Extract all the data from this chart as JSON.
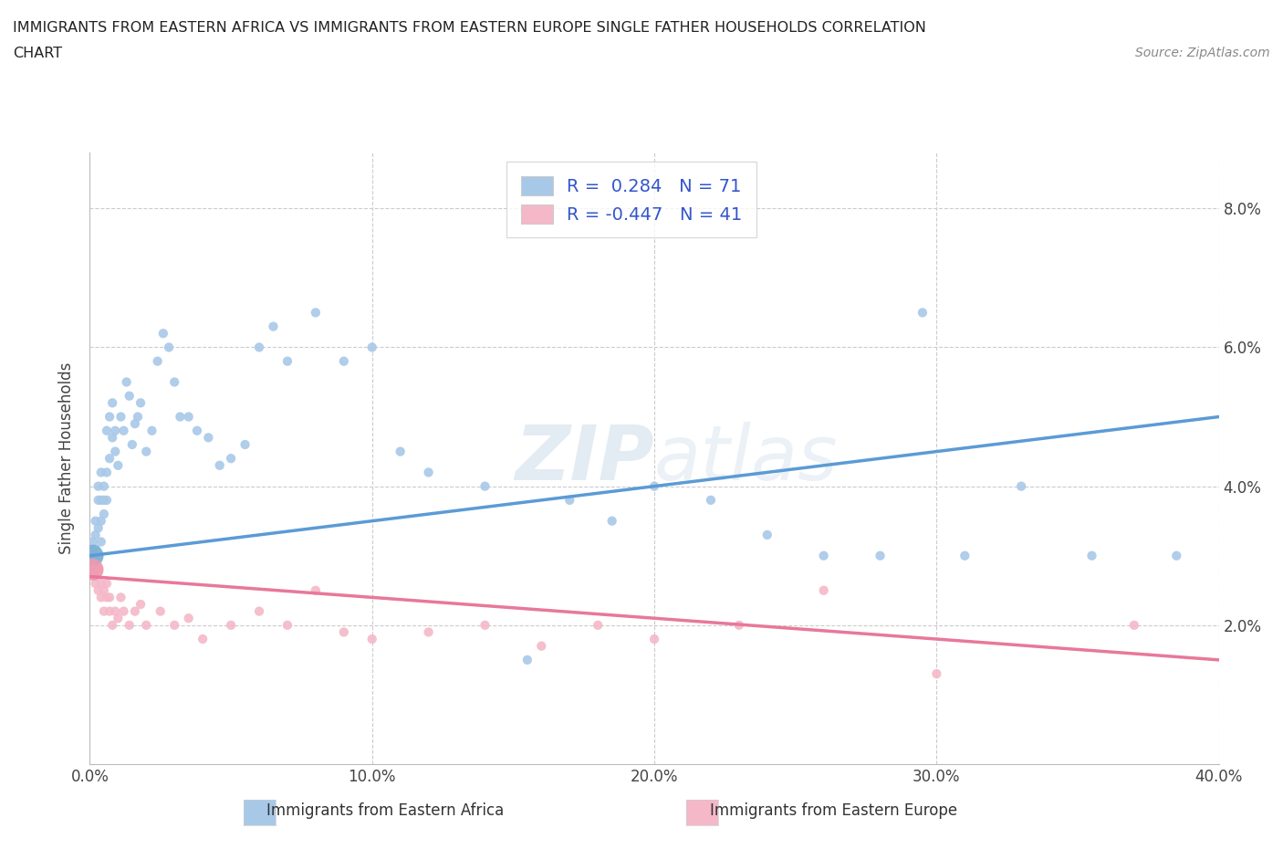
{
  "title_line1": "IMMIGRANTS FROM EASTERN AFRICA VS IMMIGRANTS FROM EASTERN EUROPE SINGLE FATHER HOUSEHOLDS CORRELATION",
  "title_line2": "CHART",
  "source": "Source: ZipAtlas.com",
  "ylabel": "Single Father Households",
  "legend1_label": "Immigrants from Eastern Africa",
  "legend2_label": "Immigrants from Eastern Europe",
  "R1": 0.284,
  "N1": 71,
  "R2": -0.447,
  "N2": 41,
  "color1": "#a8c8e8",
  "color1_line": "#5b9bd5",
  "color1_large": "#7bafd4",
  "color2": "#f4b8c8",
  "color2_line": "#e8789a",
  "color2_large": "#f09ab0",
  "background_color": "#ffffff",
  "grid_color": "#cccccc",
  "watermark_color": "#c8d8e8",
  "xlim": [
    0.0,
    0.4
  ],
  "ylim": [
    0.0,
    0.088
  ],
  "xticks": [
    0.0,
    0.1,
    0.2,
    0.3,
    0.4
  ],
  "yticks": [
    0.02,
    0.04,
    0.06,
    0.08
  ],
  "scatter1_x": [
    0.001,
    0.001,
    0.001,
    0.002,
    0.002,
    0.002,
    0.002,
    0.003,
    0.003,
    0.003,
    0.003,
    0.004,
    0.004,
    0.004,
    0.004,
    0.005,
    0.005,
    0.005,
    0.006,
    0.006,
    0.006,
    0.007,
    0.007,
    0.008,
    0.008,
    0.009,
    0.009,
    0.01,
    0.011,
    0.012,
    0.013,
    0.014,
    0.015,
    0.016,
    0.017,
    0.018,
    0.02,
    0.022,
    0.024,
    0.026,
    0.028,
    0.03,
    0.032,
    0.035,
    0.038,
    0.042,
    0.046,
    0.05,
    0.055,
    0.06,
    0.065,
    0.07,
    0.08,
    0.09,
    0.1,
    0.11,
    0.12,
    0.14,
    0.155,
    0.17,
    0.185,
    0.2,
    0.22,
    0.24,
    0.26,
    0.28,
    0.295,
    0.31,
    0.33,
    0.355,
    0.385
  ],
  "scatter1_y": [
    0.03,
    0.032,
    0.028,
    0.031,
    0.033,
    0.035,
    0.029,
    0.034,
    0.038,
    0.04,
    0.03,
    0.038,
    0.042,
    0.032,
    0.035,
    0.04,
    0.038,
    0.036,
    0.042,
    0.048,
    0.038,
    0.044,
    0.05,
    0.047,
    0.052,
    0.045,
    0.048,
    0.043,
    0.05,
    0.048,
    0.055,
    0.053,
    0.046,
    0.049,
    0.05,
    0.052,
    0.045,
    0.048,
    0.058,
    0.062,
    0.06,
    0.055,
    0.05,
    0.05,
    0.048,
    0.047,
    0.043,
    0.044,
    0.046,
    0.06,
    0.063,
    0.058,
    0.065,
    0.058,
    0.06,
    0.045,
    0.042,
    0.04,
    0.015,
    0.038,
    0.035,
    0.04,
    0.038,
    0.033,
    0.03,
    0.03,
    0.065,
    0.03,
    0.04,
    0.03,
    0.03
  ],
  "scatter2_x": [
    0.001,
    0.002,
    0.002,
    0.003,
    0.003,
    0.004,
    0.004,
    0.005,
    0.005,
    0.006,
    0.006,
    0.007,
    0.007,
    0.008,
    0.009,
    0.01,
    0.011,
    0.012,
    0.014,
    0.016,
    0.018,
    0.02,
    0.025,
    0.03,
    0.035,
    0.04,
    0.05,
    0.06,
    0.07,
    0.08,
    0.09,
    0.1,
    0.12,
    0.14,
    0.16,
    0.18,
    0.2,
    0.23,
    0.26,
    0.3,
    0.37
  ],
  "scatter2_y": [
    0.028,
    0.027,
    0.026,
    0.025,
    0.028,
    0.024,
    0.026,
    0.025,
    0.022,
    0.024,
    0.026,
    0.022,
    0.024,
    0.02,
    0.022,
    0.021,
    0.024,
    0.022,
    0.02,
    0.022,
    0.023,
    0.02,
    0.022,
    0.02,
    0.021,
    0.018,
    0.02,
    0.022,
    0.02,
    0.025,
    0.019,
    0.018,
    0.019,
    0.02,
    0.017,
    0.02,
    0.018,
    0.02,
    0.025,
    0.013,
    0.02
  ],
  "large_scatter2_x": [
    0.001
  ],
  "large_scatter2_y": [
    0.028
  ],
  "line1_x": [
    0.0,
    0.4
  ],
  "line1_y": [
    0.03,
    0.05
  ],
  "line2_x": [
    0.0,
    0.4
  ],
  "line2_y": [
    0.027,
    0.015
  ]
}
